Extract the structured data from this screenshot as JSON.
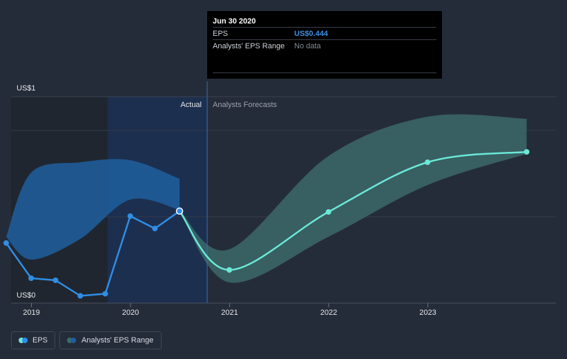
{
  "tooltip": {
    "date": "Jun 30 2020",
    "rows": [
      {
        "label": "EPS",
        "value": "US$0.444"
      },
      {
        "label": "Analysts' EPS Range",
        "value": "No data"
      }
    ]
  },
  "legend": {
    "eps_label": "EPS",
    "range_label": "Analysts' EPS Range"
  },
  "colors": {
    "background": "#252c39",
    "eps_actual": "#2f8ee6",
    "eps_forecast": "#6be8d8",
    "range_actual": "#1f5f9e",
    "range_forecast": "#3d6d6b"
  },
  "chart_data": {
    "type": "line",
    "title": "",
    "ylabel": "",
    "xlabel": "",
    "y_ticks": [
      "US$0",
      "US$1"
    ],
    "ylim": [
      0,
      1
    ],
    "xlim": [
      "2018-09-01",
      "2024-01-01"
    ],
    "x_ticks": [
      "2019",
      "2020",
      "2021",
      "2022",
      "2023"
    ],
    "section_labels": {
      "actual": "Actual",
      "forecast": "Analysts Forecasts"
    },
    "divider_date": "2020-06-30",
    "series": [
      {
        "name": "EPS",
        "kind": "actual",
        "points": [
          {
            "x": "2018-09-30",
            "y": 0.29
          },
          {
            "x": "2018-12-31",
            "y": 0.12
          },
          {
            "x": "2019-03-31",
            "y": 0.11
          },
          {
            "x": "2019-06-30",
            "y": 0.035
          },
          {
            "x": "2019-09-30",
            "y": 0.045
          },
          {
            "x": "2019-12-31",
            "y": 0.42
          },
          {
            "x": "2020-03-31",
            "y": 0.36
          },
          {
            "x": "2020-06-30",
            "y": 0.444
          }
        ]
      },
      {
        "name": "EPS",
        "kind": "forecast",
        "points": [
          {
            "x": "2020-06-30",
            "y": 0.444
          },
          {
            "x": "2020-12-31",
            "y": 0.16
          },
          {
            "x": "2021-12-31",
            "y": 0.44
          },
          {
            "x": "2022-12-31",
            "y": 0.68
          },
          {
            "x": "2023-12-31",
            "y": 0.73
          }
        ]
      }
    ],
    "range_bands": [
      {
        "name": "Analysts' EPS Range",
        "kind": "actual",
        "points": [
          {
            "x": "2018-09-30",
            "low": 0.32,
            "high": 0.32
          },
          {
            "x": "2018-12-31",
            "low": 0.21,
            "high": 0.63
          },
          {
            "x": "2019-06-30",
            "low": 0.31,
            "high": 0.68
          },
          {
            "x": "2019-12-31",
            "low": 0.5,
            "high": 0.69
          },
          {
            "x": "2020-06-30",
            "low": 0.45,
            "high": 0.6
          }
        ]
      },
      {
        "name": "Analysts' EPS Range",
        "kind": "forecast",
        "points": [
          {
            "x": "2020-06-30",
            "low": 0.45,
            "high": 0.45
          },
          {
            "x": "2020-12-31",
            "low": 0.1,
            "high": 0.26
          },
          {
            "x": "2021-12-31",
            "low": 0.32,
            "high": 0.71
          },
          {
            "x": "2022-12-31",
            "low": 0.57,
            "high": 0.9
          },
          {
            "x": "2023-12-31",
            "low": 0.72,
            "high": 0.89
          }
        ]
      }
    ]
  }
}
